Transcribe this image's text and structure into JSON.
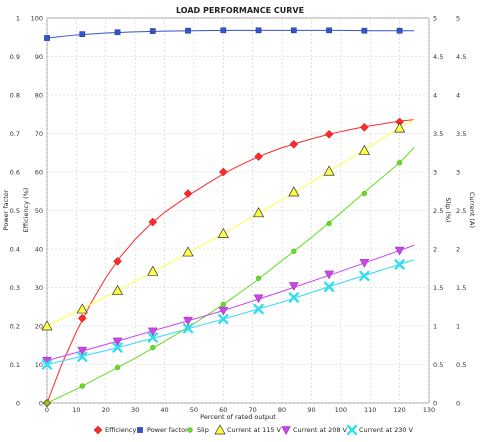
{
  "chart_data": {
    "type": "line",
    "title": "LOAD PERFORMANCE CURVE",
    "xlabel": "Percent of rated output",
    "left_axis_labels": [
      "Power factor",
      "Efficiency (%)"
    ],
    "right_axis_labels": [
      "Slip (%)",
      "Current (A)"
    ],
    "xlim": [
      0,
      130
    ],
    "x_ticks": [
      0,
      10,
      20,
      30,
      40,
      50,
      60,
      70,
      80,
      90,
      100,
      110,
      120,
      130
    ],
    "ylim_power_factor": [
      0,
      1
    ],
    "power_factor_ticks": [
      "0",
      "0.1",
      "0.2",
      "0.3",
      "0.4",
      "0.5",
      "0.6",
      "0.7",
      "0.8",
      "0.9",
      "1"
    ],
    "ylim_efficiency": [
      0,
      100
    ],
    "efficiency_ticks": [
      "0",
      "10",
      "20",
      "30",
      "40",
      "50",
      "60",
      "70",
      "80",
      "90",
      "100"
    ],
    "ylim_slip": [
      0,
      5
    ],
    "slip_ticks": [
      "0",
      "0.5",
      "1",
      "1.5",
      "2",
      "2.5",
      "3",
      "3.5",
      "4",
      "4.5",
      "5"
    ],
    "ylim_current": [
      0,
      5
    ],
    "current_ticks": [
      "0",
      "0.5",
      "1",
      "1.5",
      "2",
      "2.5",
      "3",
      "3.5",
      "4",
      "4.5",
      "5"
    ],
    "grid": true,
    "legend_position": "bottom",
    "series": [
      {
        "name": "Efficiency",
        "color": "#ff2a2a",
        "marker": "diamond",
        "axis": "efficiency",
        "x": [
          0,
          12,
          24,
          36,
          48,
          60,
          72,
          84,
          96,
          108,
          120
        ],
        "y": [
          0,
          22,
          36.8,
          47,
          54.4,
          60,
          64,
          67.2,
          69.8,
          71.6,
          73
        ],
        "curve_x": [
          0,
          5,
          10,
          15,
          20,
          25,
          30,
          35,
          40,
          45,
          50,
          55,
          60,
          65,
          70,
          75,
          80,
          85,
          90,
          95,
          100,
          105,
          110,
          115,
          120,
          125
        ],
        "curve_y": [
          0,
          10,
          18.5,
          26,
          32.5,
          38,
          42.5,
          46.3,
          49.5,
          52.2,
          54.8,
          57.2,
          59.5,
          61.5,
          63.3,
          64.9,
          66.3,
          67.5,
          68.6,
          69.6,
          70.5,
          71.3,
          72,
          72.6,
          73.2,
          73.6
        ]
      },
      {
        "name": "Power factor",
        "color": "#3355cc",
        "marker": "square",
        "axis": "power_factor",
        "x": [
          0,
          12,
          24,
          36,
          48,
          60,
          72,
          84,
          96,
          108,
          120
        ],
        "y": [
          0.948,
          0.958,
          0.963,
          0.966,
          0.967,
          0.968,
          0.968,
          0.968,
          0.968,
          0.967,
          0.967
        ],
        "curve_x": [
          0,
          10,
          20,
          30,
          40,
          50,
          60,
          70,
          80,
          90,
          100,
          110,
          120,
          125
        ],
        "curve_y": [
          0.948,
          0.956,
          0.961,
          0.964,
          0.966,
          0.967,
          0.968,
          0.968,
          0.968,
          0.968,
          0.968,
          0.967,
          0.967,
          0.967
        ]
      },
      {
        "name": "Slip",
        "color": "#66dd22",
        "marker": "dot",
        "axis": "slip",
        "x": [
          0,
          12,
          24,
          36,
          48,
          60,
          72,
          84,
          96,
          108,
          120
        ],
        "y": [
          0,
          0.22,
          0.46,
          0.72,
          0.98,
          1.28,
          1.62,
          1.97,
          2.33,
          2.72,
          3.12
        ],
        "curve_x": [
          0,
          10,
          20,
          30,
          40,
          50,
          60,
          70,
          80,
          90,
          100,
          110,
          120,
          125
        ],
        "curve_y": [
          0,
          0.18,
          0.38,
          0.58,
          0.8,
          1.03,
          1.28,
          1.55,
          1.85,
          2.15,
          2.47,
          2.8,
          3.12,
          3.32
        ]
      },
      {
        "name": "Current at 115 V",
        "color": "#ffff44",
        "marker": "triangle",
        "axis": "current",
        "x": [
          0,
          12,
          24,
          36,
          48,
          60,
          72,
          84,
          96,
          108,
          120
        ],
        "y": [
          1,
          1.22,
          1.46,
          1.71,
          1.96,
          2.2,
          2.47,
          2.74,
          3.01,
          3.28,
          3.57
        ],
        "curve_x": [
          0,
          20,
          40,
          60,
          80,
          100,
          120,
          125
        ],
        "curve_y": [
          1,
          1.38,
          1.78,
          2.2,
          2.64,
          3.1,
          3.57,
          3.68
        ]
      },
      {
        "name": "Current at 208 V",
        "color": "#cc44ee",
        "marker": "inverted-triangle",
        "axis": "current",
        "x": [
          0,
          12,
          24,
          36,
          48,
          60,
          72,
          84,
          96,
          108,
          120
        ],
        "y": [
          0.55,
          0.68,
          0.8,
          0.93,
          1.07,
          1.2,
          1.36,
          1.52,
          1.67,
          1.82,
          1.98
        ],
        "curve_x": [
          0,
          20,
          40,
          60,
          80,
          100,
          120,
          125
        ],
        "curve_y": [
          0.55,
          0.76,
          0.98,
          1.2,
          1.45,
          1.71,
          1.98,
          2.05
        ]
      },
      {
        "name": "Current at 230 V",
        "color": "#33ddee",
        "marker": "x",
        "axis": "current",
        "x": [
          0,
          12,
          24,
          36,
          48,
          60,
          72,
          84,
          96,
          108,
          120
        ],
        "y": [
          0.5,
          0.6,
          0.72,
          0.85,
          0.97,
          1.09,
          1.22,
          1.37,
          1.51,
          1.65,
          1.8
        ],
        "curve_x": [
          0,
          20,
          40,
          60,
          80,
          100,
          120,
          125
        ],
        "curve_y": [
          0.5,
          0.68,
          0.88,
          1.09,
          1.31,
          1.56,
          1.8,
          1.86
        ]
      }
    ]
  }
}
